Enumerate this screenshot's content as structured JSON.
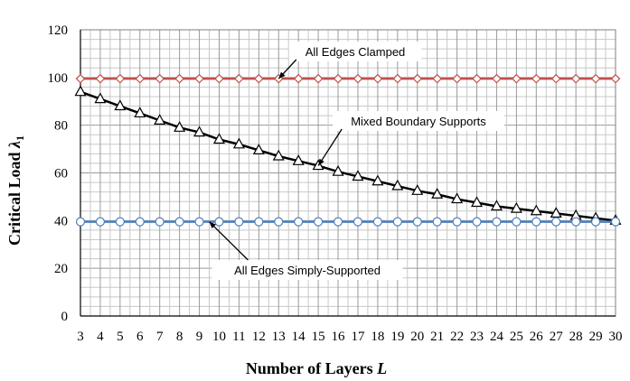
{
  "chart_data": {
    "type": "line",
    "xlabel": "Number of Layers L",
    "ylabel": "Critical Load λ1",
    "xlim": [
      3,
      30
    ],
    "ylim": [
      0,
      120
    ],
    "x_ticks": [
      3,
      4,
      5,
      6,
      7,
      8,
      9,
      10,
      11,
      12,
      13,
      14,
      15,
      16,
      17,
      18,
      19,
      20,
      21,
      22,
      23,
      24,
      25,
      26,
      27,
      28,
      29,
      30
    ],
    "y_ticks": [
      0,
      20,
      40,
      60,
      80,
      100,
      120
    ],
    "grid": true,
    "x": [
      3,
      4,
      5,
      6,
      7,
      8,
      9,
      10,
      11,
      12,
      13,
      14,
      15,
      16,
      17,
      18,
      19,
      20,
      21,
      22,
      23,
      24,
      25,
      26,
      27,
      28,
      29,
      30
    ],
    "series": [
      {
        "name": "All Edges Clamped",
        "marker": "diamond",
        "color": "#c0504d",
        "values": [
          99.5,
          99.5,
          99.5,
          99.5,
          99.5,
          99.5,
          99.5,
          99.5,
          99.5,
          99.5,
          99.5,
          99.5,
          99.5,
          99.5,
          99.5,
          99.5,
          99.5,
          99.5,
          99.5,
          99.5,
          99.5,
          99.5,
          99.5,
          99.5,
          99.5,
          99.5,
          99.5,
          99.5
        ]
      },
      {
        "name": "Mixed Boundary Supports",
        "marker": "triangle",
        "color": "#000000",
        "values": [
          94,
          91,
          88,
          85,
          82,
          79,
          77,
          74,
          72,
          69.5,
          67,
          65,
          63,
          60.5,
          58.5,
          56.5,
          54.5,
          52.5,
          51,
          49,
          47.5,
          46,
          45,
          44,
          43,
          42,
          41,
          40
        ]
      },
      {
        "name": "All Edges Simply-Supported",
        "marker": "circle",
        "color": "#4f81bd",
        "values": [
          39.5,
          39.5,
          39.5,
          39.5,
          39.5,
          39.5,
          39.5,
          39.5,
          39.5,
          39.5,
          39.5,
          39.5,
          39.5,
          39.5,
          39.5,
          39.5,
          39.5,
          39.5,
          39.5,
          39.5,
          39.5,
          39.5,
          39.5,
          39.5,
          39.5,
          39.5,
          39.5,
          39.5
        ]
      }
    ],
    "annotations": [
      {
        "text": "All Edges Clamped",
        "points_to": {
          "x": 13,
          "y": 99.5
        }
      },
      {
        "text": "Mixed Boundary Supports",
        "points_to": {
          "x": 15,
          "y": 63
        }
      },
      {
        "text": "All Edges Simply-Supported",
        "points_to": {
          "x": 9.5,
          "y": 39.5
        }
      }
    ]
  }
}
